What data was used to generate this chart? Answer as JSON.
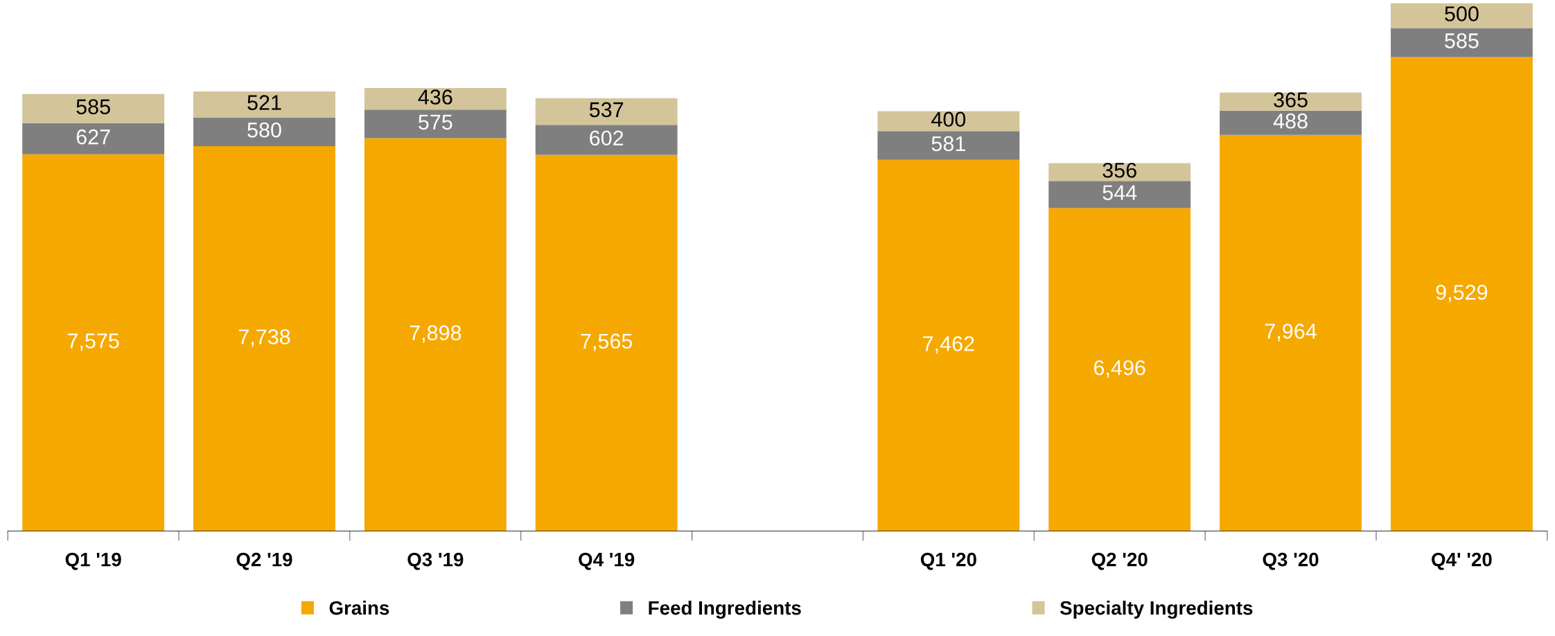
{
  "chart_data": {
    "type": "bar",
    "stacked": true,
    "data_labels": true,
    "legend": "bottom",
    "grid": false,
    "categories": [
      "Q1 '19",
      "Q2 '19",
      "Q3 '19",
      "Q4 '19",
      null,
      "Q1 '20",
      "Q2 '20",
      "Q3 '20",
      "Q4' '20"
    ],
    "series": [
      {
        "name": "Grains",
        "color": "#f5a800",
        "values": [
          7575,
          7738,
          7898,
          7565,
          null,
          7462,
          6496,
          7964,
          9529
        ],
        "value_labels": [
          "7,575",
          "7,738",
          "7,898",
          "7,565",
          null,
          "7,462",
          "6,496",
          "7,964",
          "9,529"
        ]
      },
      {
        "name": "Feed Ingredients",
        "color": "#7f7f7f",
        "values": [
          627,
          580,
          575,
          602,
          null,
          581,
          544,
          488,
          585
        ]
      },
      {
        "name": "Specialty Ingredients",
        "color": "#d3c49a",
        "values": [
          585,
          521,
          436,
          537,
          null,
          400,
          356,
          365,
          500
        ]
      }
    ]
  }
}
